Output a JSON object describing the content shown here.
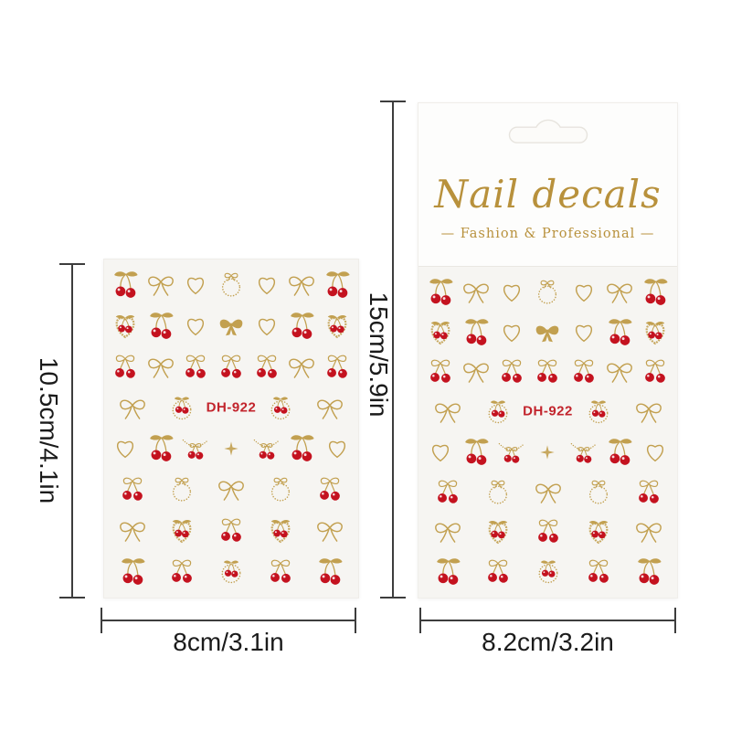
{
  "product": {
    "brand": "Nail decals",
    "subtitle": "— Fashion & Professional —",
    "code": "DH-922"
  },
  "left_sheet": {
    "code": "DH-922",
    "height_label": "10.5cm/4.1in",
    "width_label": "8cm/3.1in"
  },
  "package": {
    "brand": "Nail decals",
    "subtitle": "— Fashion & Professional —",
    "code": "DH-922",
    "height_label": "15cm/5.9in",
    "width_label": "8.2cm/3.2in"
  },
  "colors": {
    "gold": "#c2a050",
    "brand_gold": "#b8913c",
    "red": "#c4121f",
    "code_red": "#c2242c",
    "sheet_bg": "#f6f5f2",
    "card_bg": "#fdfdfc",
    "line": "#3d3d3d",
    "ink": "#1b1b1b"
  },
  "pattern": {
    "rows": [
      [
        "cherry",
        "bow",
        "heart",
        "wreath",
        "heart",
        "bow",
        "cherry"
      ],
      [
        "heartwreath",
        "cherry",
        "heart",
        "solidbow",
        "heart",
        "cherry",
        "heartwreath"
      ],
      [
        "bowcherry",
        "bow",
        "bowcherry",
        "bowcherry",
        "bowcherry",
        "bow",
        "bowcherry"
      ],
      [
        "bow",
        "wreathcherry",
        "blank",
        "wreathcherry",
        "bow"
      ],
      [
        "heart",
        "cherry",
        "garland",
        "sparkle",
        "garland",
        "cherry",
        "heart"
      ],
      [
        "bowcherry",
        "wreath",
        "bow",
        "wreath",
        "bowcherry"
      ],
      [
        "bow",
        "heartwreath",
        "bowcherry",
        "heartwreath",
        "bow"
      ],
      [
        "cherry",
        "bowcherry",
        "wreathcherry",
        "bowcherry",
        "cherry"
      ]
    ]
  }
}
